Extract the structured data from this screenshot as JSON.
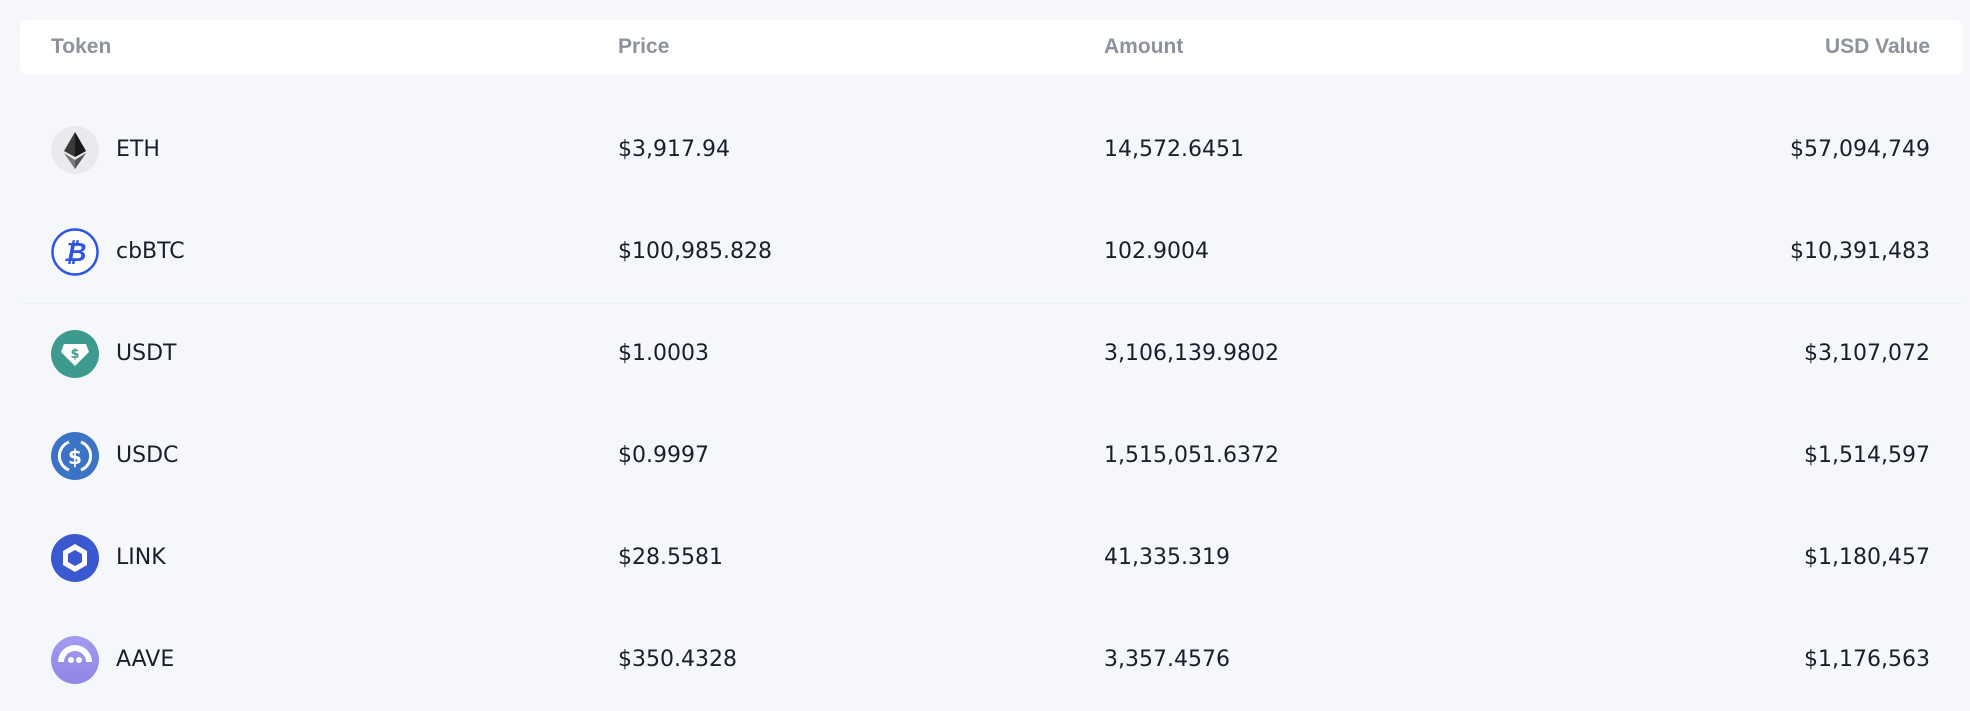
{
  "table": {
    "columns": [
      "Token",
      "Price",
      "Amount",
      "USD Value"
    ],
    "rows": [
      {
        "token": "ETH",
        "icon": "ethereum-icon",
        "price": "$3,917.94",
        "amount": "14,572.6451",
        "usd_value": "$57,094,749"
      },
      {
        "token": "cbBTC",
        "icon": "bitcoin-icon",
        "price": "$100,985.828",
        "amount": "102.9004",
        "usd_value": "$10,391,483"
      },
      {
        "token": "USDT",
        "icon": "tether-icon",
        "price": "$1.0003",
        "amount": "3,106,139.9802",
        "usd_value": "$3,107,072"
      },
      {
        "token": "USDC",
        "icon": "usdc-icon",
        "price": "$0.9997",
        "amount": "1,515,051.6372",
        "usd_value": "$1,514,597"
      },
      {
        "token": "LINK",
        "icon": "chainlink-icon",
        "price": "$28.5581",
        "amount": "41,335.319",
        "usd_value": "$1,180,457"
      },
      {
        "token": "AAVE",
        "icon": "aave-icon",
        "price": "$350.4328",
        "amount": "3,357.4576",
        "usd_value": "$1,176,563"
      }
    ]
  },
  "colors": {
    "background": "#f5f7fa",
    "header_text": "#8e929c",
    "text": "#1c1d2b",
    "cbbtc": "#2f55e6",
    "usdt": "#3d9a8e",
    "usdc": "#3b73c6",
    "link": "#3a59d1",
    "aave": "#9b8fec"
  }
}
